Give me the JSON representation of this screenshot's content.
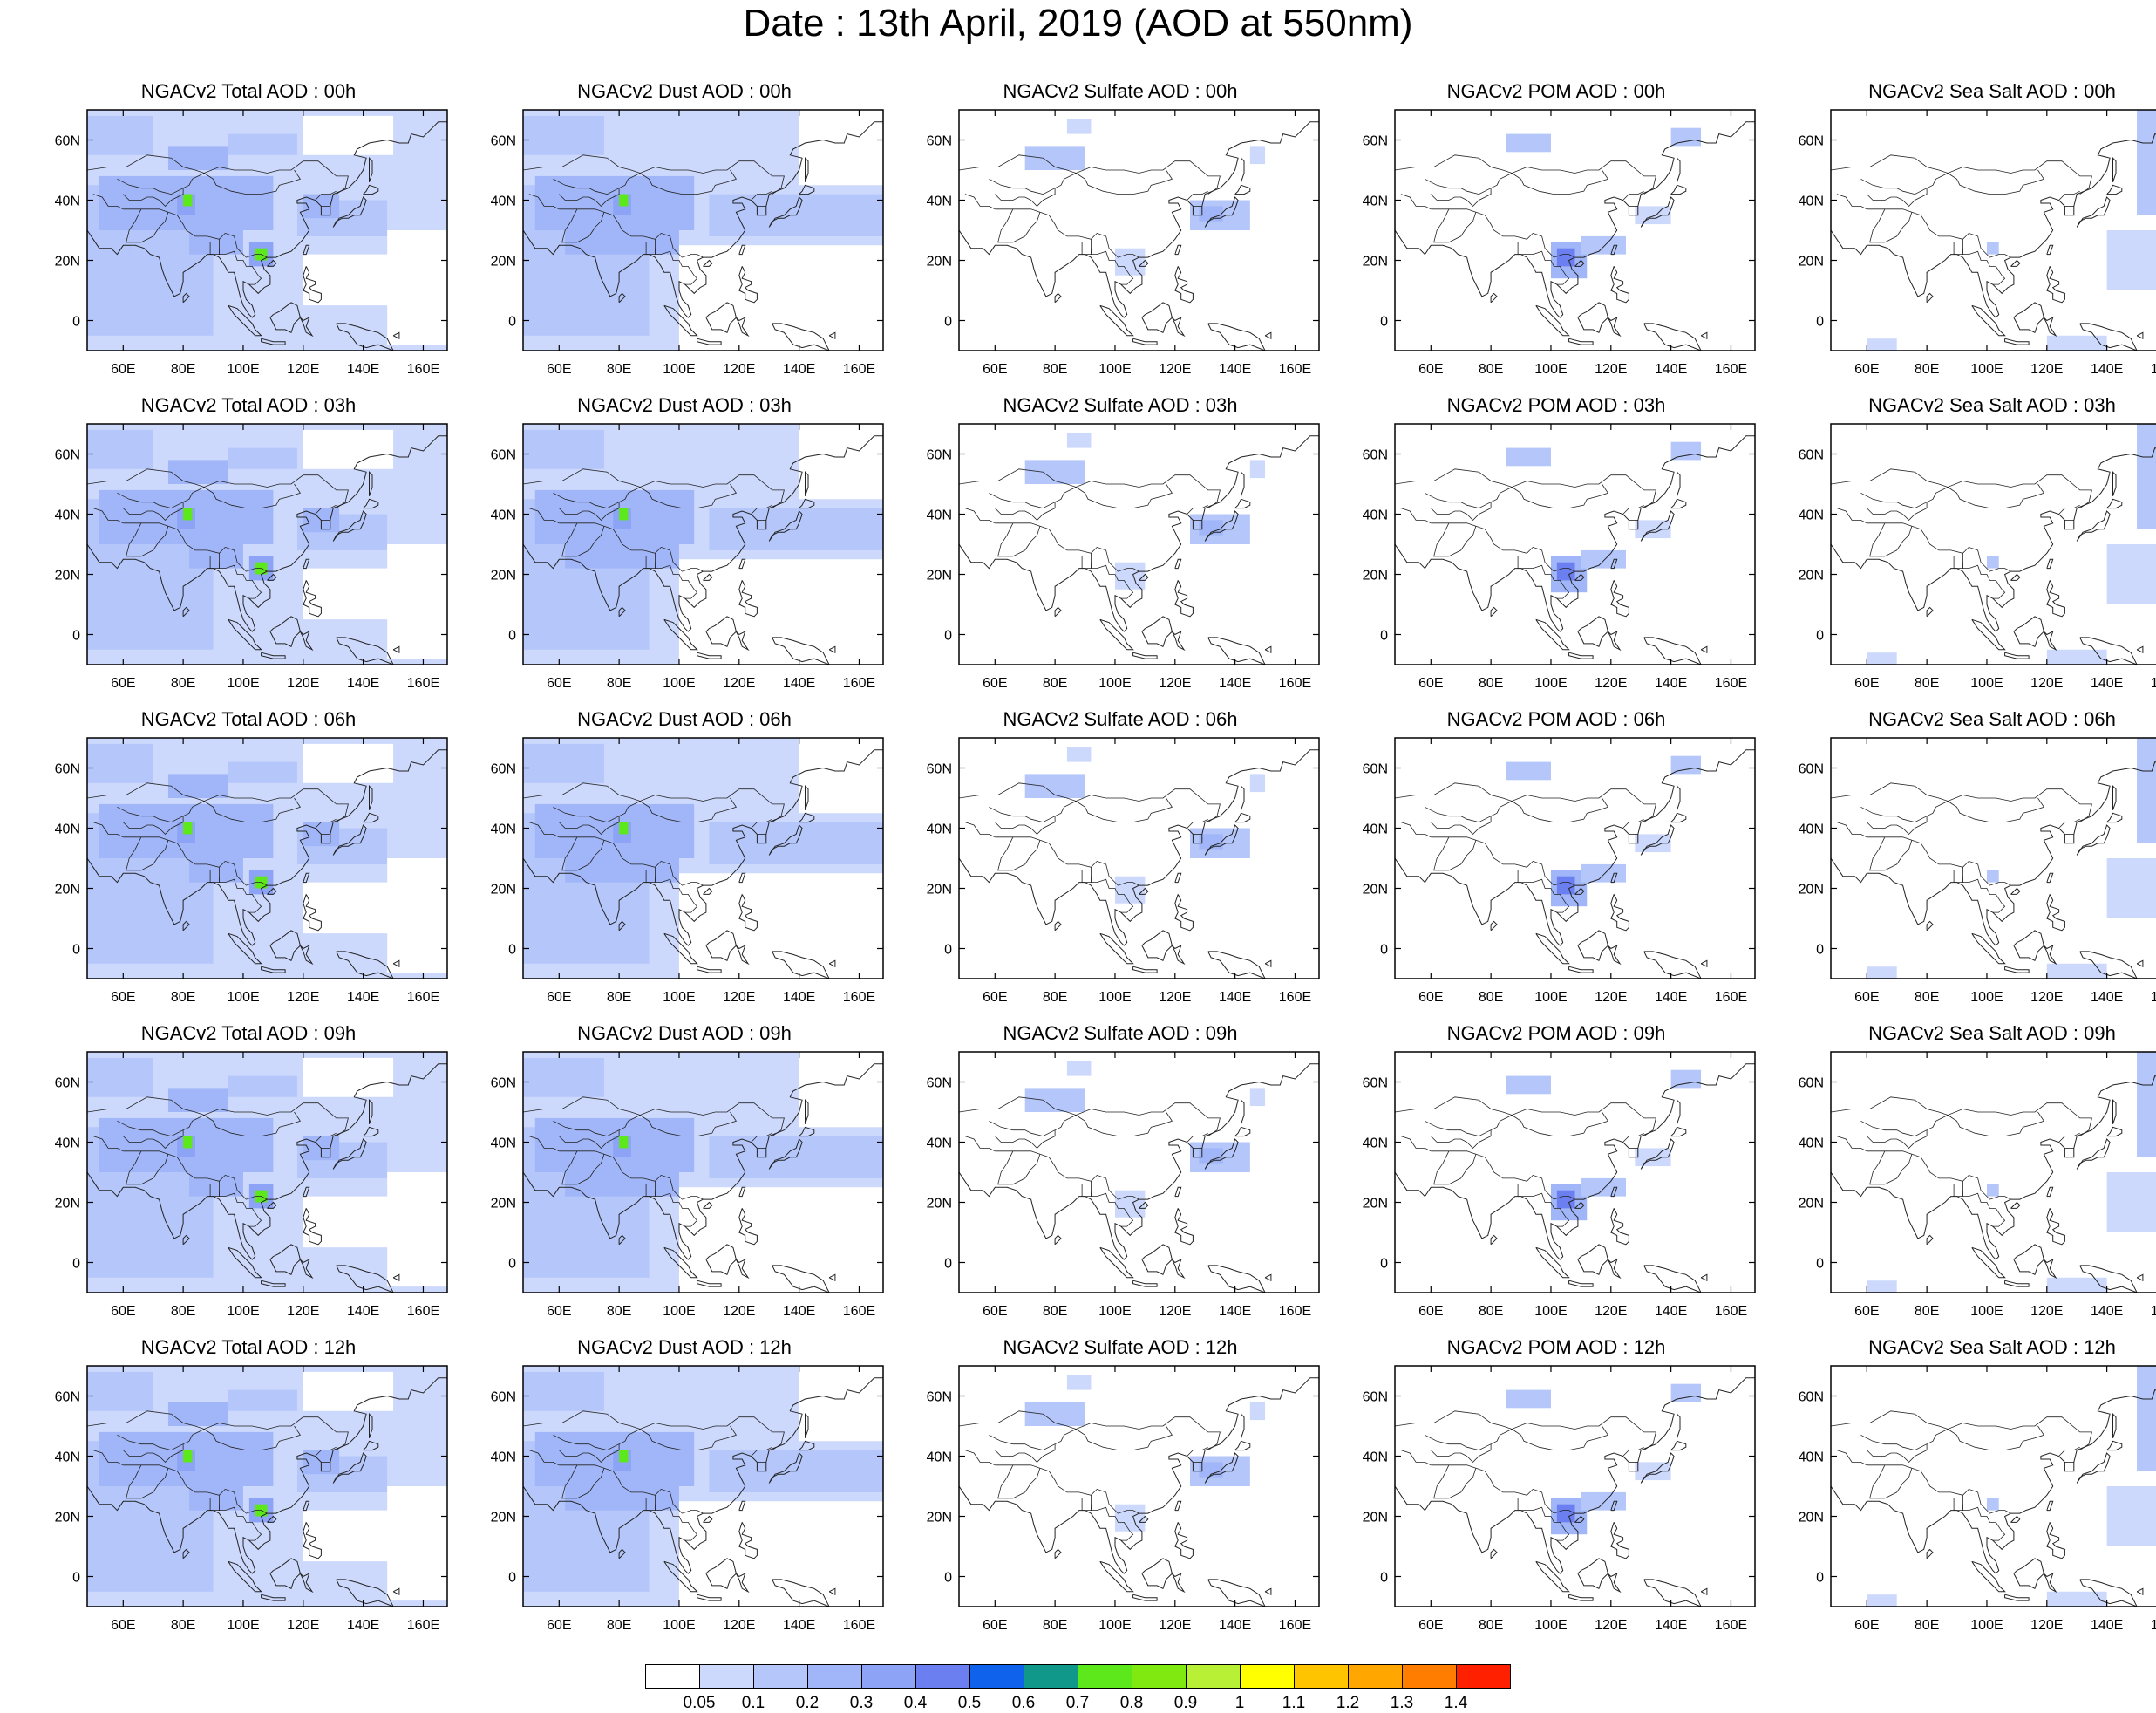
{
  "title": "Date : 13th April, 2019 (AOD at 550nm)",
  "row_labels": [
    "00h",
    "03h",
    "06h",
    "09h",
    "12h"
  ],
  "panels": [
    [
      "NGACv2 Total AOD : 00h",
      "NGACv2 Dust AOD : 00h",
      "NGACv2 Sulfate AOD : 00h",
      "NGACv2 POM AOD : 00h",
      "NGACv2 Sea Salt AOD : 00h"
    ],
    [
      "NGACv2 Total AOD : 03h",
      "NGACv2 Dust AOD : 03h",
      "NGACv2 Sulfate AOD : 03h",
      "NGACv2 POM AOD : 03h",
      "NGACv2 Sea Salt AOD : 03h"
    ],
    [
      "NGACv2 Total AOD : 06h",
      "NGACv2 Dust AOD : 06h",
      "NGACv2 Sulfate AOD : 06h",
      "NGACv2 POM AOD : 06h",
      "NGACv2 Sea Salt AOD : 06h"
    ],
    [
      "NGACv2 Total AOD : 09h",
      "NGACv2 Dust AOD : 09h",
      "NGACv2 Sulfate AOD : 09h",
      "NGACv2 POM AOD : 09h",
      "NGACv2 Sea Salt  AOD : 09h"
    ],
    [
      "NGACv2 Total AOD  : 12h",
      "NGACv2 Dust AOD : 12h",
      "NGACv2 Sulfate AOD : 12h",
      "NGACv2 POM  AOD : 12h",
      "NGACv2 Sea Salt  AOD : 12h"
    ]
  ],
  "map_axes": {
    "lon_ticks": [
      "60E",
      "80E",
      "100E",
      "120E",
      "140E",
      "160E"
    ],
    "lat_ticks": [
      "60N",
      "40N",
      "20N",
      "0"
    ],
    "lon_range": [
      48,
      168
    ],
    "lat_range": [
      -10,
      70
    ]
  },
  "colorbar": {
    "labels": [
      "0.05",
      "0.1",
      "0.2",
      "0.3",
      "0.4",
      "0.5",
      "0.6",
      "0.7",
      "0.8",
      "0.9",
      "1",
      "1.1",
      "1.2",
      "1.3",
      "1.4"
    ],
    "colors": [
      "#ffffff",
      "#cdd9fc",
      "#b4c6fa",
      "#a1b6f8",
      "#8ca3f6",
      "#6b7ff1",
      "#0e62ec",
      "#10988a",
      "#5ce81a",
      "#80ea10",
      "#b8f036",
      "#ffff00",
      "#ffc400",
      "#ffa600",
      "#ff7d00",
      "#ff2000"
    ]
  }
}
